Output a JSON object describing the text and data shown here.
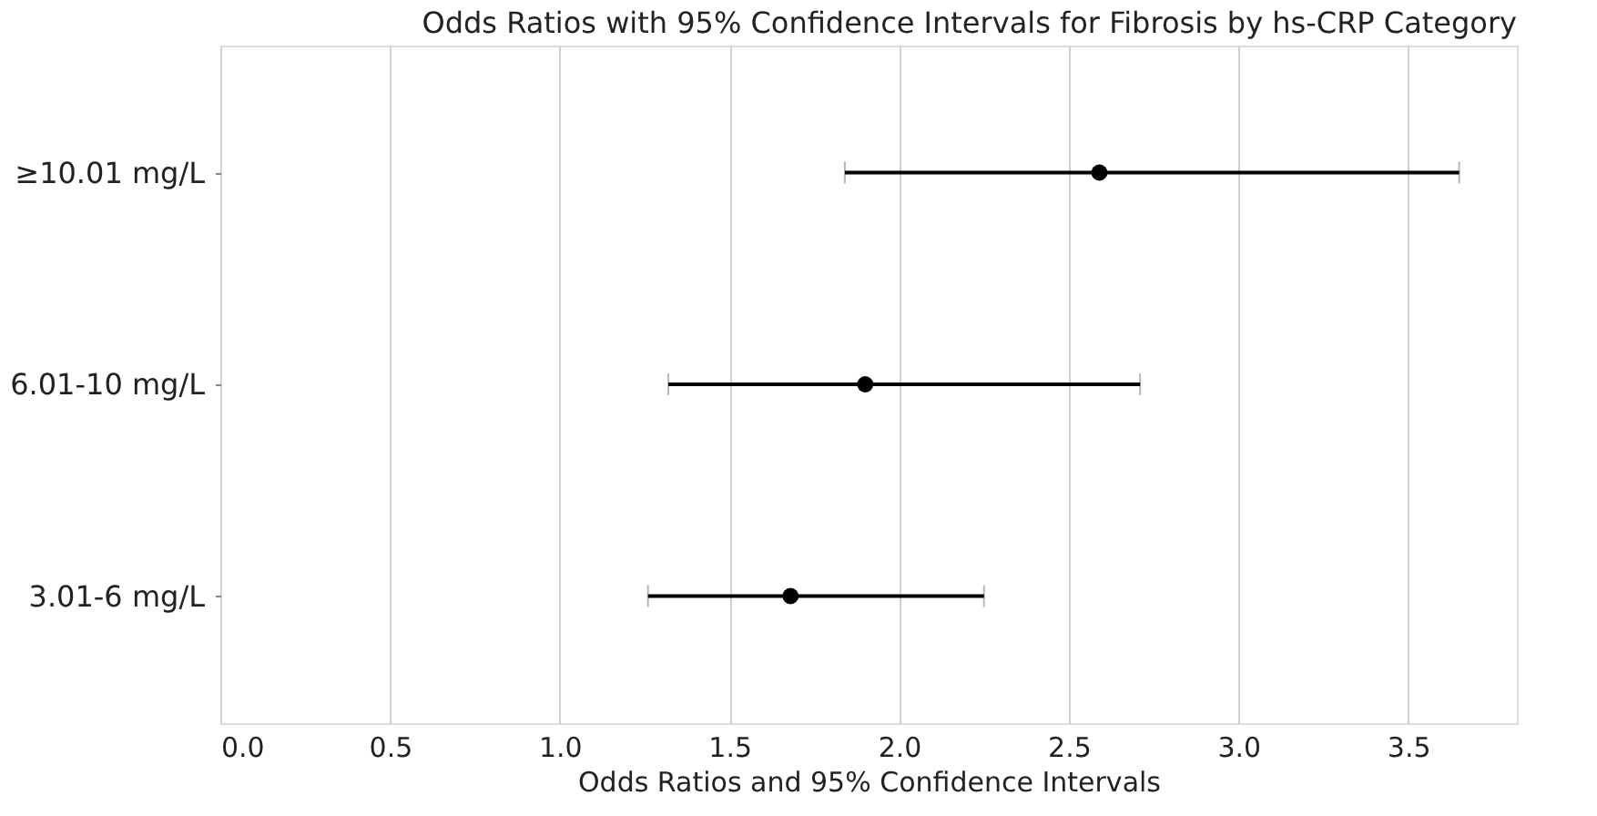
{
  "chart_data": {
    "type": "scatter",
    "title": "Odds Ratios with 95% Confidence Intervals for Fibrosis by hs-CRP Category",
    "xlabel": "Odds Ratios and 95% Confidence Intervals",
    "categories": [
      "≥10.01 mg/L",
      "6.01-10 mg/L",
      "3.01-6 mg/L"
    ],
    "values": [
      2.59,
      1.9,
      1.68
    ],
    "errors": [
      [
        1.84,
        3.65
      ],
      [
        1.32,
        2.71
      ],
      [
        1.26,
        2.25
      ]
    ],
    "color": "#000000",
    "marker": "circle",
    "xlim": [
      0,
      3.82
    ],
    "xticks": [
      {
        "value": 0,
        "label": "0.0"
      },
      {
        "value": 0.5,
        "label": "0.5"
      },
      {
        "value": 1,
        "label": "1.0"
      },
      {
        "value": 1.5,
        "label": "1.5"
      },
      {
        "value": 2,
        "label": "2.0"
      },
      {
        "value": 2.5,
        "label": "2.5"
      },
      {
        "value": 3,
        "label": "3.0"
      },
      {
        "value": 3.5,
        "label": "3.5"
      }
    ],
    "orientation": "horizontal",
    "grid": "x"
  }
}
